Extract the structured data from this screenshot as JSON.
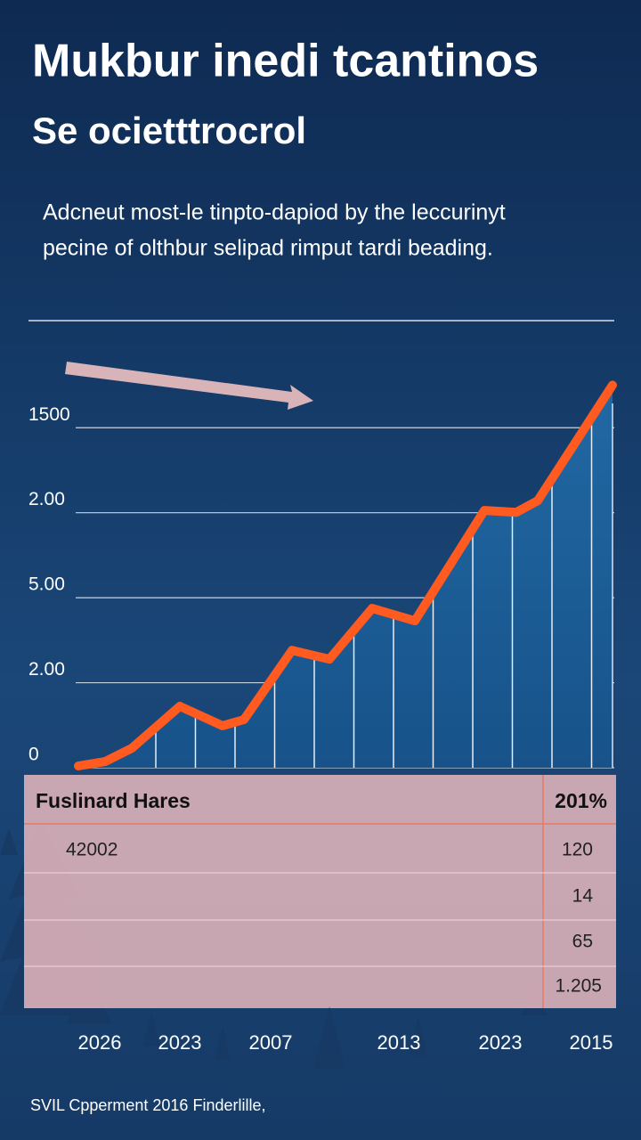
{
  "chart_data": {
    "type": "line",
    "title": "Mukbur inedi tcantinos",
    "subtitle": "Se ocietttrocrol",
    "description": [
      "Adcneut most-le tinpto-dapiod by the leccurinyt",
      "pecine of olthbur selipad rimput tardi beading."
    ],
    "x": [
      0,
      5,
      10,
      19,
      27,
      31,
      40,
      47,
      55,
      63,
      76,
      82,
      86,
      100
    ],
    "values": [
      8,
      27,
      86,
      271,
      185,
      212,
      518,
      479,
      703,
      648,
      1135,
      1127,
      1178,
      1688
    ],
    "color": "#ff5a1f",
    "area_color": "#1d5f98",
    "xlim": [
      0,
      100
    ],
    "xticks": [
      {
        "value": 4,
        "label": "2026"
      },
      {
        "value": 19,
        "label": "2023"
      },
      {
        "value": 36,
        "label": "2007"
      },
      {
        "value": 60,
        "label": "2013"
      },
      {
        "value": 79,
        "label": "2023"
      },
      {
        "value": 96,
        "label": "2015"
      }
    ],
    "ylim": [
      0,
      2000
    ],
    "yticks": [
      0,
      {
        "value": 375,
        "label": "2.00"
      },
      {
        "value": 750,
        "label": "5.00"
      },
      {
        "value": 1125,
        "label": "2.00"
      },
      1500
    ],
    "grid": true
  },
  "table": {
    "header": [
      "Fuslinard Hares",
      "201%"
    ],
    "rows": [
      {
        "label": "42002",
        "value": "120"
      },
      {
        "value": "14"
      },
      {
        "value": "65"
      },
      {
        "value": "1.205"
      }
    ]
  },
  "footer": "SVIL Cpperment 2016 Finderlille,"
}
